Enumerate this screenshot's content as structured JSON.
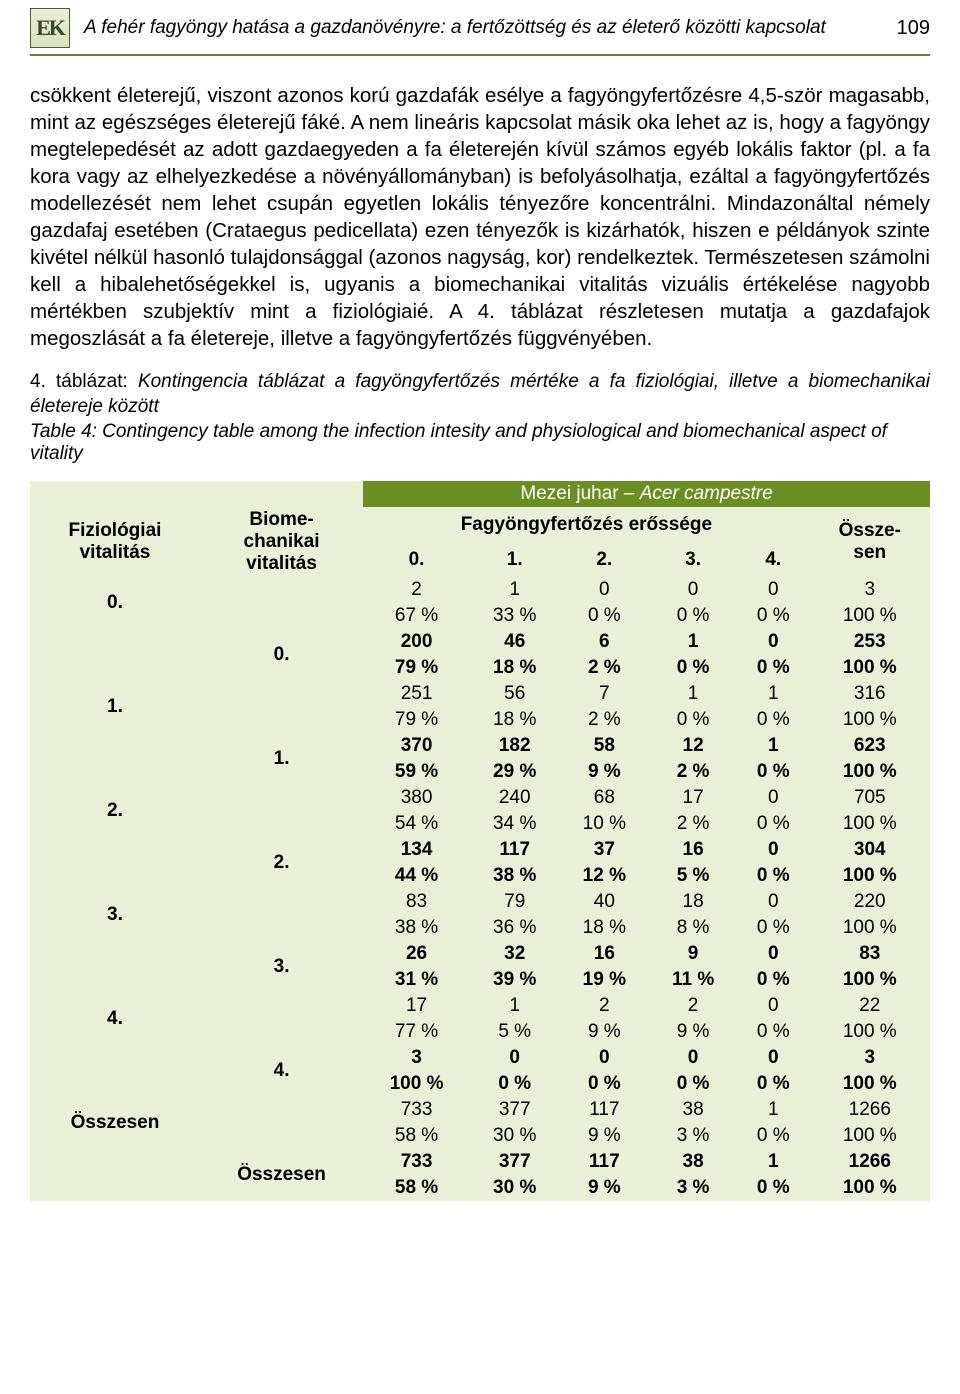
{
  "header": {
    "logo_text": "EK",
    "running_title": "A fehér fagyöngy hatása a gazdanövényre: a fertőzöttség és az életerő közötti kapcsolat",
    "page_number": "109"
  },
  "body_paragraph": "csökkent életerejű, viszont azonos korú gazdafák esélye a fagyöngyfertőzésre 4,5-ször magasabb, mint az egészséges életerejű fáké. A nem lineáris kapcsolat másik oka lehet az is, hogy a fagyöngy megtelepedését az adott gazdaegyeden a fa életerején kívül számos egyéb lokális faktor (pl. a fa kora vagy az elhelyezkedése a növényállományban) is befolyásolhatja, ezáltal a fagyöngyfertőzés modellezését nem lehet csupán egyetlen lokális tényezőre koncentrálni. Mindazonáltal némely gazdafaj esetében (Crataegus pedicellata) ezen tényezők is kizárhatók, hiszen e példányok szinte kivétel nélkül hasonló tulajdonsággal (azonos nagyság, kor) rendelkeztek. Természetesen számolni kell a hibalehetőségekkel is, ugyanis a biomechanikai vitalitás vizuális értékelése nagyobb mértékben szubjektív mint a fiziológiaié. A 4. táblázat részletesen mutatja a gazdafajok megoszlását a fa életereje, illetve a fagyöngyfertőzés függvényében.",
  "caption_hu_lead": "4. táblázat: ",
  "caption_hu_italic": "Kontingencia táblázat a fagyöngyfertőzés mértéke a fa fiziológiai, illetve a biomechanikai életereje között",
  "caption_en": "Table 4: Contingency table among the infection intesity and physiological and biomechanical aspect of vitality",
  "table": {
    "species_label": "Mezei juhar – ",
    "species_latin": "Acer campestre",
    "col_phys": "Fiziológiai vitalitás",
    "col_biom": "Biome-chanikai vitalitás",
    "col_infect_header": "Fagyöngyfertőzés erőssége",
    "col_levels": [
      "0.",
      "1.",
      "2.",
      "3.",
      "4."
    ],
    "col_total": "Össze-sen",
    "row_total_label": "Összesen",
    "rows": [
      {
        "head": "0.",
        "type": "phys",
        "n": [
          "2",
          "1",
          "0",
          "0",
          "0",
          "3"
        ],
        "p": [
          "67 %",
          "33 %",
          "0 %",
          "0 %",
          "0 %",
          "100 %"
        ]
      },
      {
        "head": "0.",
        "type": "biom",
        "n": [
          "200",
          "46",
          "6",
          "1",
          "0",
          "253"
        ],
        "p": [
          "79 %",
          "18 %",
          "2 %",
          "0 %",
          "0 %",
          "100 %"
        ]
      },
      {
        "head": "1.",
        "type": "phys",
        "n": [
          "251",
          "56",
          "7",
          "1",
          "1",
          "316"
        ],
        "p": [
          "79 %",
          "18 %",
          "2 %",
          "0 %",
          "0 %",
          "100 %"
        ]
      },
      {
        "head": "1.",
        "type": "biom",
        "n": [
          "370",
          "182",
          "58",
          "12",
          "1",
          "623"
        ],
        "p": [
          "59 %",
          "29 %",
          "9 %",
          "2 %",
          "0 %",
          "100 %"
        ]
      },
      {
        "head": "2.",
        "type": "phys",
        "n": [
          "380",
          "240",
          "68",
          "17",
          "0",
          "705"
        ],
        "p": [
          "54 %",
          "34 %",
          "10 %",
          "2 %",
          "0 %",
          "100 %"
        ]
      },
      {
        "head": "2.",
        "type": "biom",
        "n": [
          "134",
          "117",
          "37",
          "16",
          "0",
          "304"
        ],
        "p": [
          "44 %",
          "38 %",
          "12 %",
          "5 %",
          "0 %",
          "100 %"
        ]
      },
      {
        "head": "3.",
        "type": "phys",
        "n": [
          "83",
          "79",
          "40",
          "18",
          "0",
          "220"
        ],
        "p": [
          "38 %",
          "36 %",
          "18 %",
          "8 %",
          "0 %",
          "100 %"
        ]
      },
      {
        "head": "3.",
        "type": "biom",
        "n": [
          "26",
          "32",
          "16",
          "9",
          "0",
          "83"
        ],
        "p": [
          "31 %",
          "39 %",
          "19 %",
          "11 %",
          "0 %",
          "100 %"
        ]
      },
      {
        "head": "4.",
        "type": "phys",
        "n": [
          "17",
          "1",
          "2",
          "2",
          "0",
          "22"
        ],
        "p": [
          "77 %",
          "5 %",
          "9 %",
          "9 %",
          "0 %",
          "100 %"
        ]
      },
      {
        "head": "4.",
        "type": "biom",
        "n": [
          "3",
          "0",
          "0",
          "0",
          "0",
          "3"
        ],
        "p": [
          "100 %",
          "0 %",
          "0 %",
          "0 %",
          "0 %",
          "100 %"
        ]
      },
      {
        "head": "Összesen",
        "type": "phys",
        "n": [
          "733",
          "377",
          "117",
          "38",
          "1",
          "1266"
        ],
        "p": [
          "58 %",
          "30 %",
          "9 %",
          "3 %",
          "0 %",
          "100 %"
        ]
      },
      {
        "head": "Összesen",
        "type": "biom",
        "n": [
          "733",
          "377",
          "117",
          "38",
          "1",
          "1266"
        ],
        "p": [
          "58 %",
          "30 %",
          "9 %",
          "3 %",
          "0 %",
          "100 %"
        ]
      }
    ]
  },
  "colors": {
    "header_band": "#6b8e23",
    "row_light": "#eaefd8",
    "rule": "#6b7d3a"
  }
}
